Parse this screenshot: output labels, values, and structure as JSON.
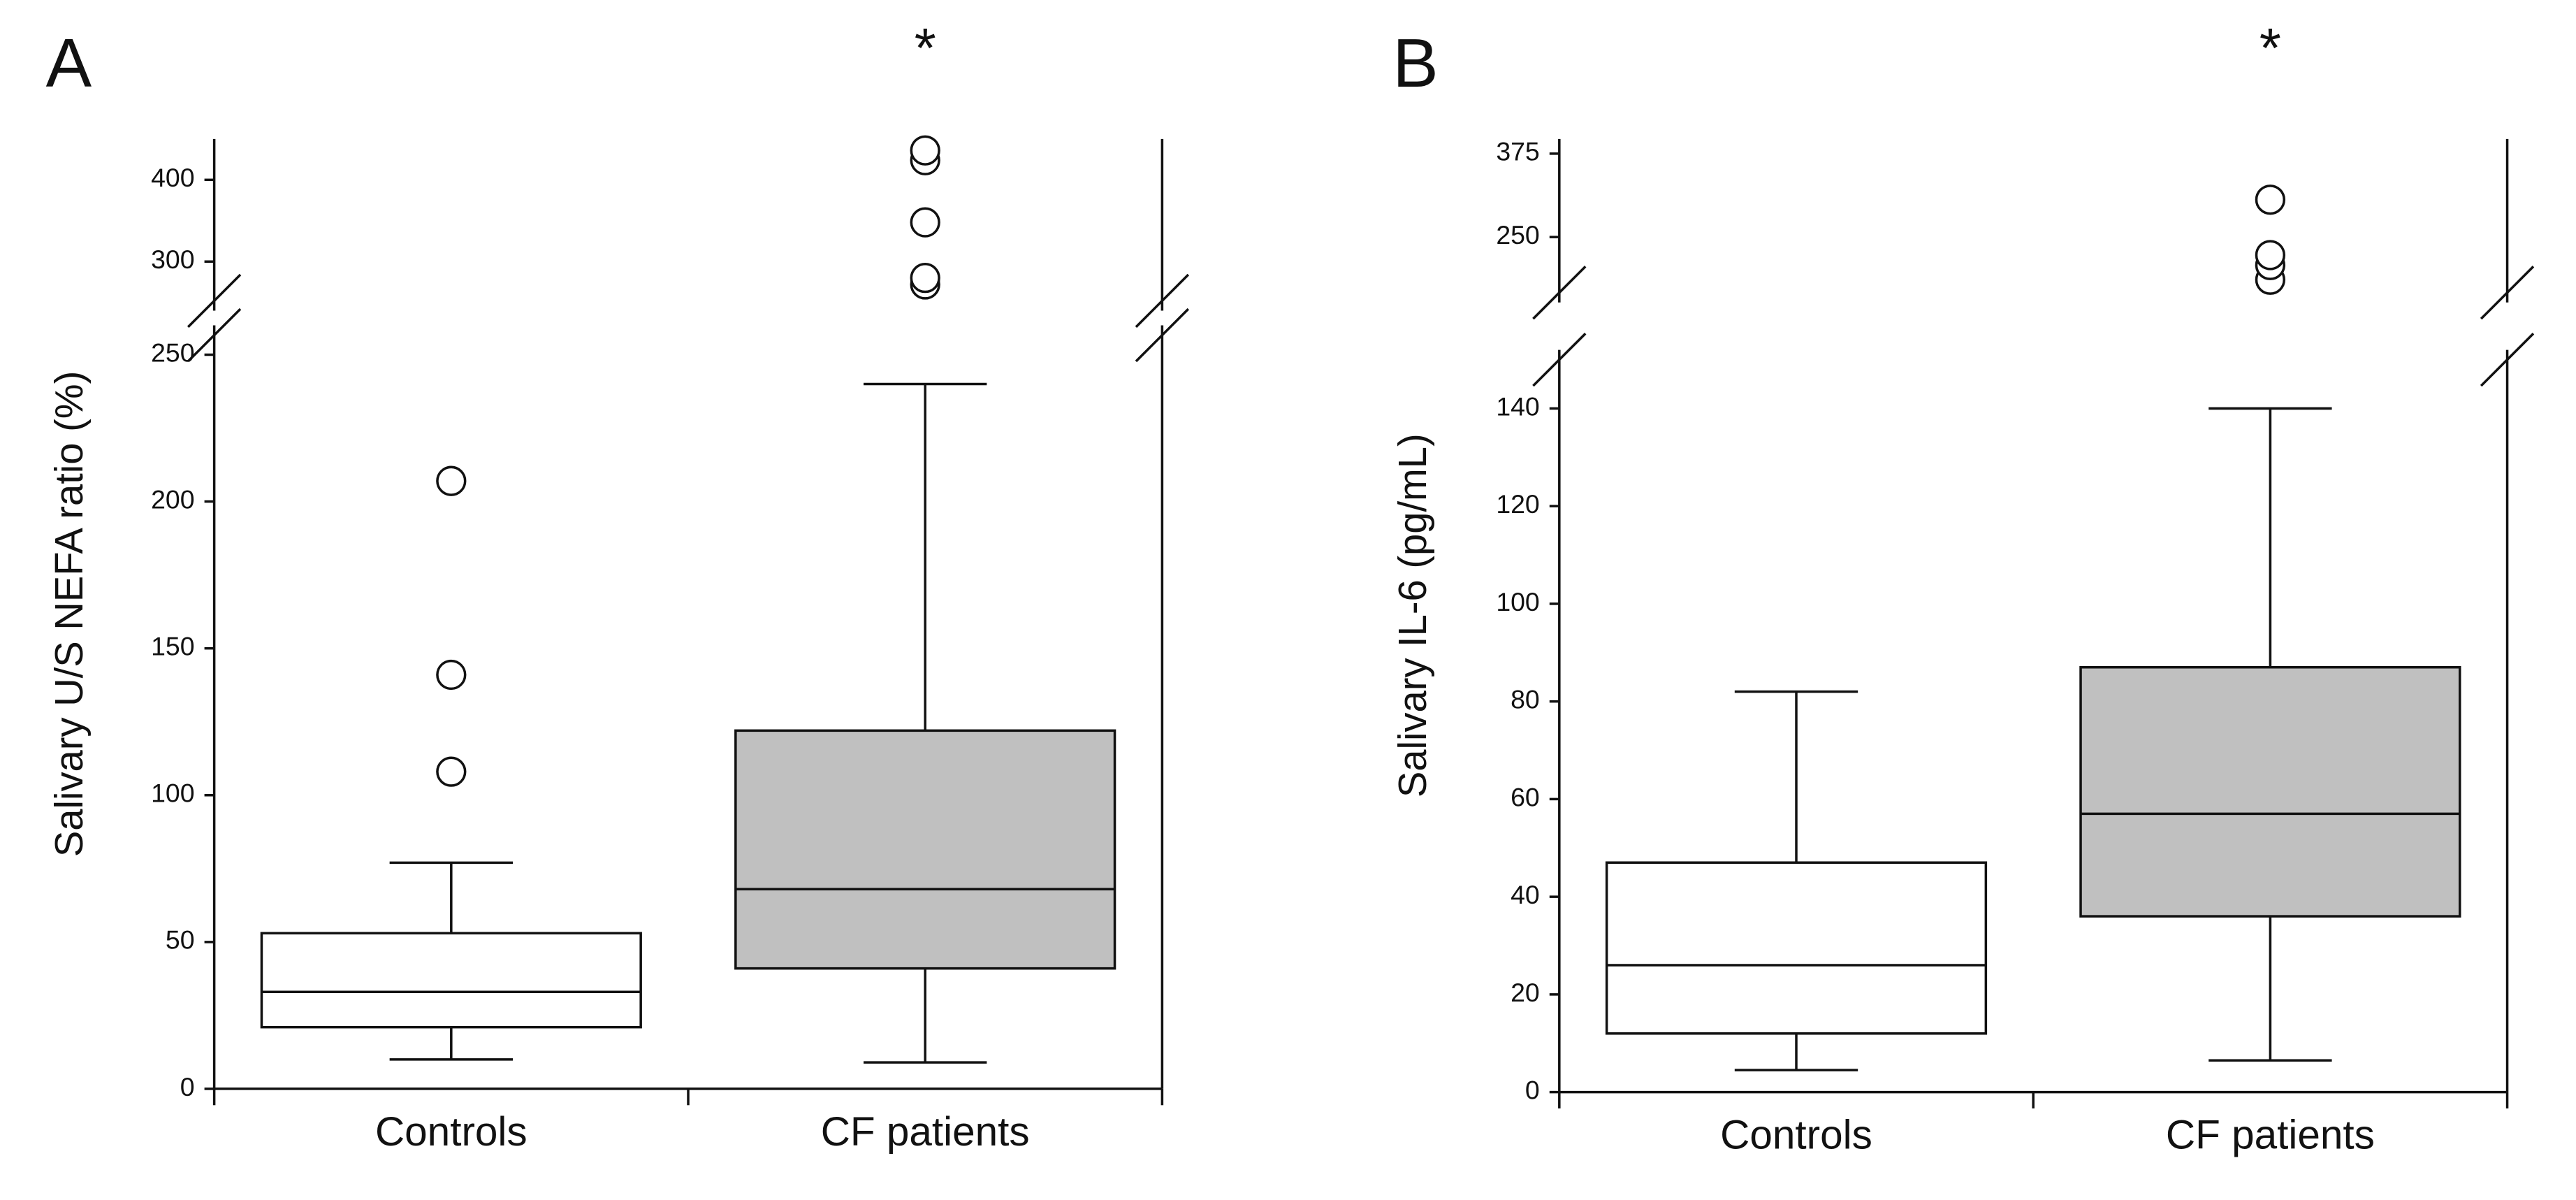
{
  "chart_data": [
    {
      "type": "box",
      "label": "A",
      "ylabel": "Salivary U/S NEFA ratio (%)",
      "annotation": "*",
      "categories": [
        "Controls",
        "CF patients"
      ],
      "colors": [
        "#ffffff",
        "#c0c0c0"
      ],
      "ylim": [
        0,
        260
      ],
      "yticks": [
        0,
        50,
        100,
        150,
        200,
        250
      ],
      "ylim_upper": [
        240,
        450
      ],
      "yticks_upper": [
        300,
        400
      ],
      "boxes": [
        {
          "whislo": 10,
          "q1": 21,
          "med": 33,
          "q3": 53,
          "whishi": 77,
          "fliers": [
            108,
            141,
            207
          ]
        },
        {
          "whislo": 9,
          "q1": 41,
          "med": 68,
          "q3": 122,
          "whishi": 240,
          "fliers": [
            272,
            280,
            348,
            424,
            436
          ]
        }
      ]
    },
    {
      "type": "box",
      "label": "B",
      "ylabel": "Salivary IL-6 (pg/mL)",
      "annotation": "*",
      "categories": [
        "Controls",
        "CF patients"
      ],
      "colors": [
        "#ffffff",
        "#c0c0c0"
      ],
      "ylim": [
        0,
        152
      ],
      "yticks": [
        0,
        20,
        40,
        60,
        80,
        100,
        120,
        140
      ],
      "ylim_upper": [
        152,
        397
      ],
      "yticks_upper": [
        250,
        375
      ],
      "boxes": [
        {
          "whislo": 4.5,
          "q1": 12,
          "med": 26,
          "q3": 47,
          "whishi": 82,
          "fliers": []
        },
        {
          "whislo": 6.5,
          "q1": 36,
          "med": 57,
          "q3": 87,
          "whishi": 140,
          "fliers": [
            186,
            208,
            223,
            306
          ]
        }
      ]
    }
  ]
}
